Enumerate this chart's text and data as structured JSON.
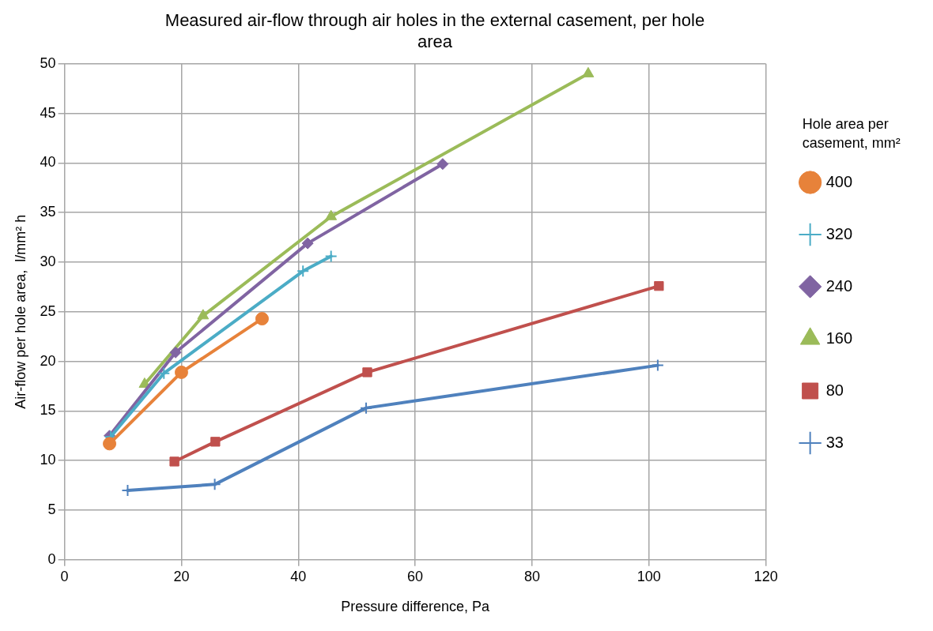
{
  "chart_data": {
    "type": "line",
    "title": "Measured air-flow through air holes in the external casement, per hole area",
    "xlabel": "Pressure difference, Pa",
    "ylabel": "Air-flow per hole area,  l/mm² h",
    "legend_title": "Hole area per casement, mm²",
    "legend": "right",
    "grid": true,
    "xlim": [
      0,
      120
    ],
    "xticks": [
      0,
      20,
      40,
      60,
      80,
      100,
      120
    ],
    "ylim": [
      0,
      50
    ],
    "yticks": [
      0,
      5,
      10,
      15,
      20,
      25,
      30,
      35,
      40,
      45,
      50
    ],
    "series": [
      {
        "name": "400",
        "color": "#e7823a",
        "marker": "circle",
        "x": [
          7.7,
          20.0,
          33.8
        ],
        "values": [
          11.7,
          18.9,
          24.3
        ]
      },
      {
        "name": "320",
        "color": "#4bacc6",
        "marker": "cross",
        "x": [
          7.9,
          17.0,
          40.8,
          45.6
        ],
        "values": [
          12.4,
          18.8,
          29.1,
          30.6
        ]
      },
      {
        "name": "240",
        "color": "#8064a2",
        "marker": "diamond",
        "x": [
          7.7,
          19.0,
          41.6,
          64.7
        ],
        "values": [
          12.5,
          20.9,
          31.9,
          39.9
        ]
      },
      {
        "name": "160",
        "color": "#9bbb59",
        "marker": "triangle",
        "x": [
          13.7,
          23.7,
          45.6,
          89.6
        ],
        "values": [
          17.7,
          24.6,
          34.6,
          49.0
        ]
      },
      {
        "name": "80",
        "color": "#c0504d",
        "marker": "square",
        "x": [
          18.8,
          25.8,
          51.8,
          101.7
        ],
        "values": [
          9.9,
          11.9,
          18.9,
          27.6
        ]
      },
      {
        "name": "33",
        "color": "#4f81bd",
        "marker": "cross",
        "x": [
          10.8,
          25.7,
          51.6,
          101.5
        ],
        "values": [
          7.0,
          7.6,
          15.3,
          19.6
        ]
      }
    ]
  }
}
